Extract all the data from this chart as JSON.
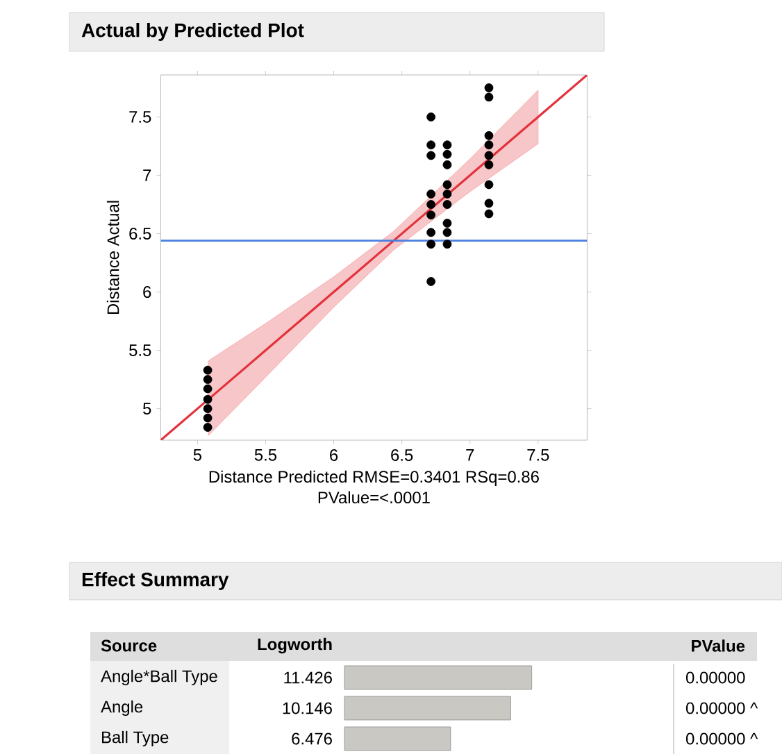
{
  "chart_data": [
    {
      "type": "scatter",
      "title": "Actual by Predicted Plot",
      "xlabel": "Distance Predicted RMSE=0.3401 RSq=0.86 PValue=<.0001",
      "ylabel": "Distance Actual",
      "xlim": [
        4.73,
        7.86
      ],
      "ylim": [
        4.73,
        7.86
      ],
      "xticks": [
        5,
        5.5,
        6,
        6.5,
        7,
        7.5
      ],
      "yticks": [
        5,
        5.5,
        6,
        6.5,
        7,
        7.5
      ],
      "grid": false,
      "series": [
        {
          "type": "line",
          "color": "#e3323c",
          "x": [
            4.73,
            5.08,
            5.5,
            6.0,
            6.44,
            7.0,
            7.5,
            7.86
          ],
          "values": [
            4.73,
            5.08,
            5.5,
            6.0,
            6.44,
            7.0,
            7.5,
            7.86
          ],
          "lower": [
            null,
            4.77,
            5.27,
            5.87,
            6.36,
            6.86,
            7.27,
            null
          ],
          "upper": [
            null,
            5.41,
            5.73,
            6.13,
            6.52,
            7.14,
            7.73,
            null
          ]
        },
        {
          "type": "scatter",
          "color": "#000000",
          "marker": "circle",
          "x": [
            5.075,
            5.075,
            5.075,
            5.075,
            5.075,
            5.075,
            5.075,
            6.714,
            6.714,
            6.714,
            6.714,
            6.714,
            6.714,
            6.714,
            6.714,
            6.714,
            6.833,
            6.833,
            6.833,
            6.833,
            6.833,
            6.833,
            6.833,
            6.833,
            6.833,
            7.139,
            7.139,
            7.139,
            7.139,
            7.139,
            7.139,
            7.139,
            7.139,
            7.139
          ],
          "values": [
            5.33,
            5.25,
            5.17,
            5.08,
            5.0,
            4.92,
            4.84,
            7.5,
            7.26,
            7.17,
            6.84,
            6.75,
            6.66,
            6.51,
            6.41,
            6.09,
            7.26,
            7.18,
            7.09,
            6.92,
            6.84,
            6.75,
            6.59,
            6.51,
            6.41,
            7.75,
            7.67,
            7.34,
            7.26,
            7.17,
            7.09,
            6.92,
            6.76,
            6.67
          ]
        }
      ],
      "ref_lines": [
        {
          "axis": "y",
          "value": 6.44,
          "color": "#4a7fe0"
        }
      ]
    },
    {
      "type": "bar",
      "orientation": "horizontal",
      "title": "Effect Summary",
      "ylabel": "Source",
      "categories": [
        "Angle*Ball Type",
        "Angle",
        "Ball Type"
      ],
      "values": [
        11.426,
        10.146,
        6.476
      ],
      "color": "#c9c8c3",
      "xlim": [
        0,
        20
      ],
      "data_labels": true,
      "tick_labels": "y",
      "annotations": [
        "Logworth",
        "PValue",
        "0.00000",
        "0.00000 ^",
        "0.00000 ^"
      ]
    }
  ]
}
